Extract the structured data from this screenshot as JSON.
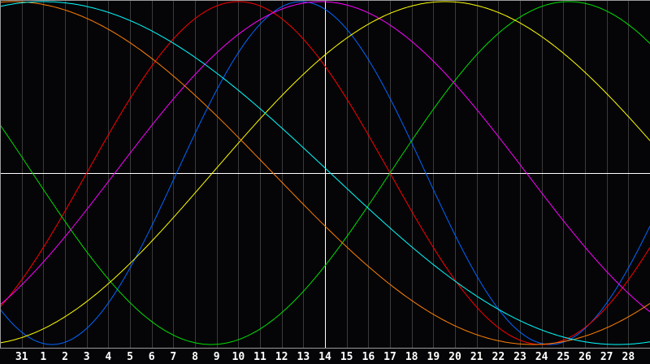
{
  "chart_data": {
    "type": "line",
    "title": "",
    "xlabel": "",
    "ylabel": "",
    "x_tick_labels": [
      "31",
      "1",
      "2",
      "3",
      "4",
      "5",
      "6",
      "7",
      "8",
      "9",
      "10",
      "11",
      "12",
      "13",
      "14",
      "15",
      "16",
      "17",
      "18",
      "19",
      "20",
      "21",
      "22",
      "23",
      "24",
      "25",
      "26",
      "27",
      "28"
    ],
    "today_label": "14",
    "y_range": [
      -1,
      1
    ],
    "grid": true,
    "legend": "none",
    "series": [
      {
        "color": "#0066ff",
        "period_days": 23,
        "peak_offset_days": -1.1
      },
      {
        "color": "#ff0000",
        "period_days": 28,
        "peak_offset_days": -4.0
      },
      {
        "color": "#00e000",
        "period_days": 33,
        "peak_offset_days": 11.25
      },
      {
        "color": "#ff00ff",
        "period_days": 38,
        "peak_offset_days": -0.2
      },
      {
        "color": "#ffff00",
        "period_days": 43,
        "peak_offset_days": 5.55
      },
      {
        "color": "#ff8000",
        "period_days": 48,
        "peak_offset_days": -14.4
      },
      {
        "color": "#00ffff",
        "period_days": 53,
        "peak_offset_days": -13.0
      }
    ],
    "colors": {
      "background": "#050508",
      "grid": "#3a3a3a",
      "axis": "#9a9a9a",
      "crosshair": "#ffffff"
    }
  }
}
